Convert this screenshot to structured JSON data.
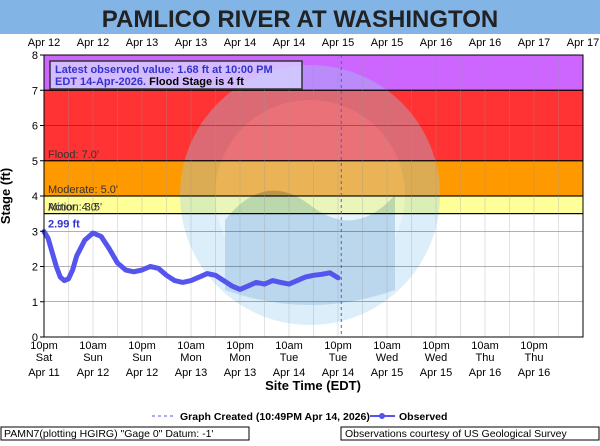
{
  "header": {
    "title": "PAMLICO RIVER AT WASHINGTON"
  },
  "info_box": {
    "line1": "Latest observed value: 1.68 ft at 10:00 PM",
    "line2a": "EDT 14-Apr-2026.",
    "line2b": "Flood Stage is 4 ft"
  },
  "footer": {
    "left": "PAMN7(plotting HGIRG) \"Gage 0\" Datum: -1'",
    "right": "Observations courtesy of US Geological Survey"
  },
  "colors": {
    "major": "#cc66ff",
    "flood": "#ff3333",
    "moderate": "#ff3333",
    "minor": "#ff9900",
    "action": "#ffff66",
    "series": "#5555ee",
    "header_bg": "#82b4e6",
    "bg": "#ffffff"
  },
  "chart_data": {
    "type": "line",
    "title": "PAMLICO RIVER AT WASHINGTON",
    "xlabel": "Site Time (EDT)",
    "ylabel": "Stage (ft)",
    "ylim": [
      0,
      8
    ],
    "yticks": [
      0,
      1,
      2,
      3,
      4,
      5,
      6,
      7,
      8
    ],
    "grid": true,
    "x_range_hours": [
      0,
      132
    ],
    "bottom_ticks": [
      {
        "h": 0,
        "l1": "10pm",
        "l2": "Sat",
        "l3": "Apr 11"
      },
      {
        "h": 12,
        "l1": "10am",
        "l2": "Sun",
        "l3": "Apr 12"
      },
      {
        "h": 24,
        "l1": "10pm",
        "l2": "Sun",
        "l3": "Apr 12"
      },
      {
        "h": 36,
        "l1": "10am",
        "l2": "Mon",
        "l3": "Apr 13"
      },
      {
        "h": 48,
        "l1": "10pm",
        "l2": "Mon",
        "l3": "Apr 13"
      },
      {
        "h": 60,
        "l1": "10am",
        "l2": "Tue",
        "l3": "Apr 14"
      },
      {
        "h": 72,
        "l1": "10pm",
        "l2": "Tue",
        "l3": "Apr 14"
      },
      {
        "h": 84,
        "l1": "10am",
        "l2": "Wed",
        "l3": "Apr 15"
      },
      {
        "h": 96,
        "l1": "10pm",
        "l2": "Wed",
        "l3": "Apr 15"
      },
      {
        "h": 108,
        "l1": "10am",
        "l2": "Thu",
        "l3": "Apr 16"
      },
      {
        "h": 120,
        "l1": "10pm",
        "l2": "Thu",
        "l3": "Apr 16"
      }
    ],
    "top_ticks": [
      {
        "h": 0,
        "label": "Apr 12"
      },
      {
        "h": 12,
        "label": "Apr 12"
      },
      {
        "h": 24,
        "label": "Apr 13"
      },
      {
        "h": 36,
        "label": "Apr 13"
      },
      {
        "h": 48,
        "label": "Apr 14"
      },
      {
        "h": 60,
        "label": "Apr 14"
      },
      {
        "h": 72,
        "label": "Apr 15"
      },
      {
        "h": 84,
        "label": "Apr 15"
      },
      {
        "h": 96,
        "label": "Apr 16"
      },
      {
        "h": 108,
        "label": "Apr 16"
      },
      {
        "h": 120,
        "label": "Apr 17"
      },
      {
        "h": 132,
        "label": "Apr 17"
      }
    ],
    "stage_bands": [
      {
        "name": "Major",
        "label": "",
        "from": 7.0,
        "to": 8.0,
        "color": "#cc66ff"
      },
      {
        "name": "Flood",
        "label": "Flood: 7.0'",
        "from": 5.0,
        "to": 7.0,
        "color": "#ff3333"
      },
      {
        "name": "Moderate",
        "label": "Moderate: 5.0'",
        "from": 4.0,
        "to": 5.0,
        "color": "#ff9900"
      },
      {
        "name": "Minor",
        "label": "Minor: 4.0'",
        "from": 3.5,
        "to": 4.0,
        "color": "#ffff99"
      },
      {
        "name": "Action",
        "label": "Action: 3.5'",
        "from": 3.5,
        "to": 3.5,
        "color": "#ffff99"
      }
    ],
    "graph_created_h": 72.8,
    "start_label": "2.99 ft",
    "series": [
      {
        "name": "Observed",
        "x": [
          0,
          1,
          2,
          3,
          4,
          5,
          6,
          7,
          8,
          10,
          12,
          14,
          16,
          18,
          20,
          22,
          24,
          26,
          28,
          30,
          32,
          34,
          36,
          38,
          40,
          42,
          44,
          46,
          48,
          50,
          52,
          54,
          56,
          58,
          60,
          62,
          64,
          66,
          68,
          70,
          72
        ],
        "values": [
          2.99,
          2.8,
          2.4,
          2.0,
          1.7,
          1.6,
          1.65,
          1.9,
          2.3,
          2.75,
          2.95,
          2.85,
          2.5,
          2.1,
          1.9,
          1.85,
          1.9,
          2.0,
          1.95,
          1.75,
          1.6,
          1.55,
          1.6,
          1.7,
          1.8,
          1.75,
          1.6,
          1.45,
          1.35,
          1.45,
          1.55,
          1.5,
          1.6,
          1.55,
          1.5,
          1.6,
          1.7,
          1.75,
          1.78,
          1.82,
          1.68
        ]
      }
    ],
    "legend": {
      "created_label": "Graph Created (10:49PM Apr 14, 2026)",
      "observed_label": "Observed",
      "placement": "bottom-center"
    }
  }
}
